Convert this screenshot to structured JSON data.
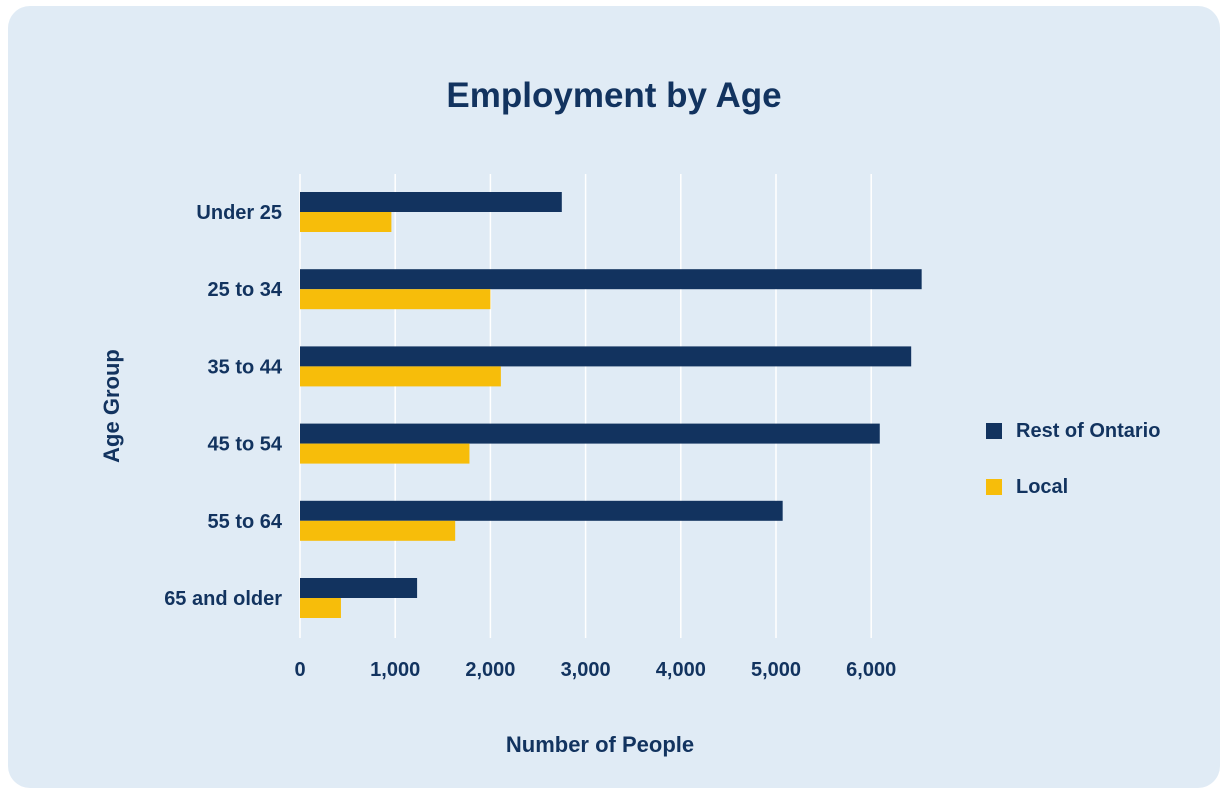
{
  "chart_data": {
    "type": "bar",
    "orientation": "horizontal",
    "title": "Employment by Age",
    "xlabel": "Number of People",
    "ylabel": "Age Group",
    "categories": [
      "Under 25",
      "25 to 34",
      "35 to 44",
      "45 to 54",
      "55 to 64",
      "65 and older"
    ],
    "series": [
      {
        "name": "Rest of Ontario",
        "color": "#12335f",
        "values": [
          2750,
          6530,
          6420,
          6090,
          5070,
          1230
        ]
      },
      {
        "name": "Local",
        "color": "#f7bd0a",
        "values": [
          960,
          2000,
          2110,
          1780,
          1630,
          430
        ]
      }
    ],
    "xticks": [
      "0",
      "1,000",
      "2,000",
      "3,000",
      "4,000",
      "5,000",
      "6,000"
    ],
    "xlim": [
      0,
      6530
    ],
    "grid": "vertical",
    "legend_position": "right"
  }
}
